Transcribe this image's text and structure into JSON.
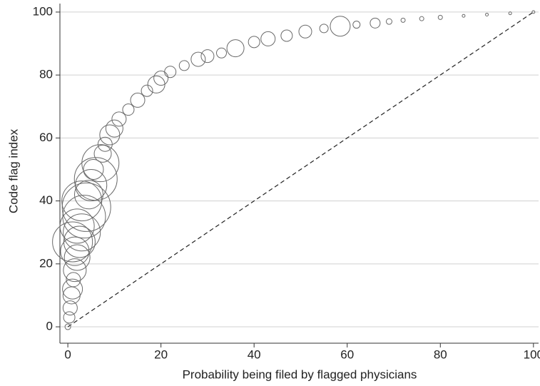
{
  "chart_data": {
    "type": "scatter",
    "x_label": "Probability being filed by flagged physicians",
    "y_label": "Code flag index",
    "xlim": [
      -1.7,
      101.1
    ],
    "ylim": [
      -5.2,
      102.7
    ],
    "xticks": [
      0,
      20,
      40,
      60,
      80,
      100
    ],
    "yticks": [
      0,
      20,
      40,
      60,
      80,
      100
    ],
    "grid": true,
    "color": "#6a6a6a",
    "reference_line": {
      "x": [
        0,
        100
      ],
      "y": [
        0,
        100
      ]
    },
    "x": [
      0,
      0.3,
      0.5,
      0.8,
      1,
      1.2,
      1.5,
      1.5,
      1,
      2,
      2.5,
      3,
      2,
      3.5,
      4,
      3,
      4.5,
      5,
      6,
      5.5,
      7,
      7.5,
      8,
      9,
      10,
      11,
      13,
      15,
      17,
      19,
      20,
      22,
      25,
      28,
      30,
      33,
      36,
      40,
      43,
      47,
      51,
      55,
      58.5,
      62,
      66,
      69,
      72,
      76,
      80,
      85,
      90,
      95,
      100
    ],
    "values": [
      0,
      3,
      6,
      10,
      12,
      15,
      18,
      24,
      27,
      22,
      27,
      30,
      32,
      35,
      38,
      40,
      42,
      45,
      47,
      50,
      52,
      55,
      58,
      61,
      63,
      66,
      69,
      72,
      75,
      77,
      79,
      81,
      83,
      85,
      86,
      87,
      88.5,
      90.5,
      91.5,
      92.5,
      93.8,
      94.8,
      95.5,
      96,
      96.5,
      97,
      97.4,
      97.9,
      98.3,
      98.8,
      99.2,
      99.6,
      100
    ],
    "sizes": [
      16,
      64,
      100,
      144,
      196,
      100,
      256,
      400,
      784,
      324,
      484,
      676,
      576,
      900,
      1156,
      784,
      400,
      484,
      900,
      196,
      676,
      144,
      100,
      196,
      144,
      100,
      64,
      100,
      64,
      144,
      100,
      64,
      49,
      100,
      81,
      49,
      144,
      64,
      100,
      64,
      81,
      36,
      196,
      25,
      49,
      16,
      9,
      9,
      9,
      4,
      4,
      4,
      4
    ]
  }
}
